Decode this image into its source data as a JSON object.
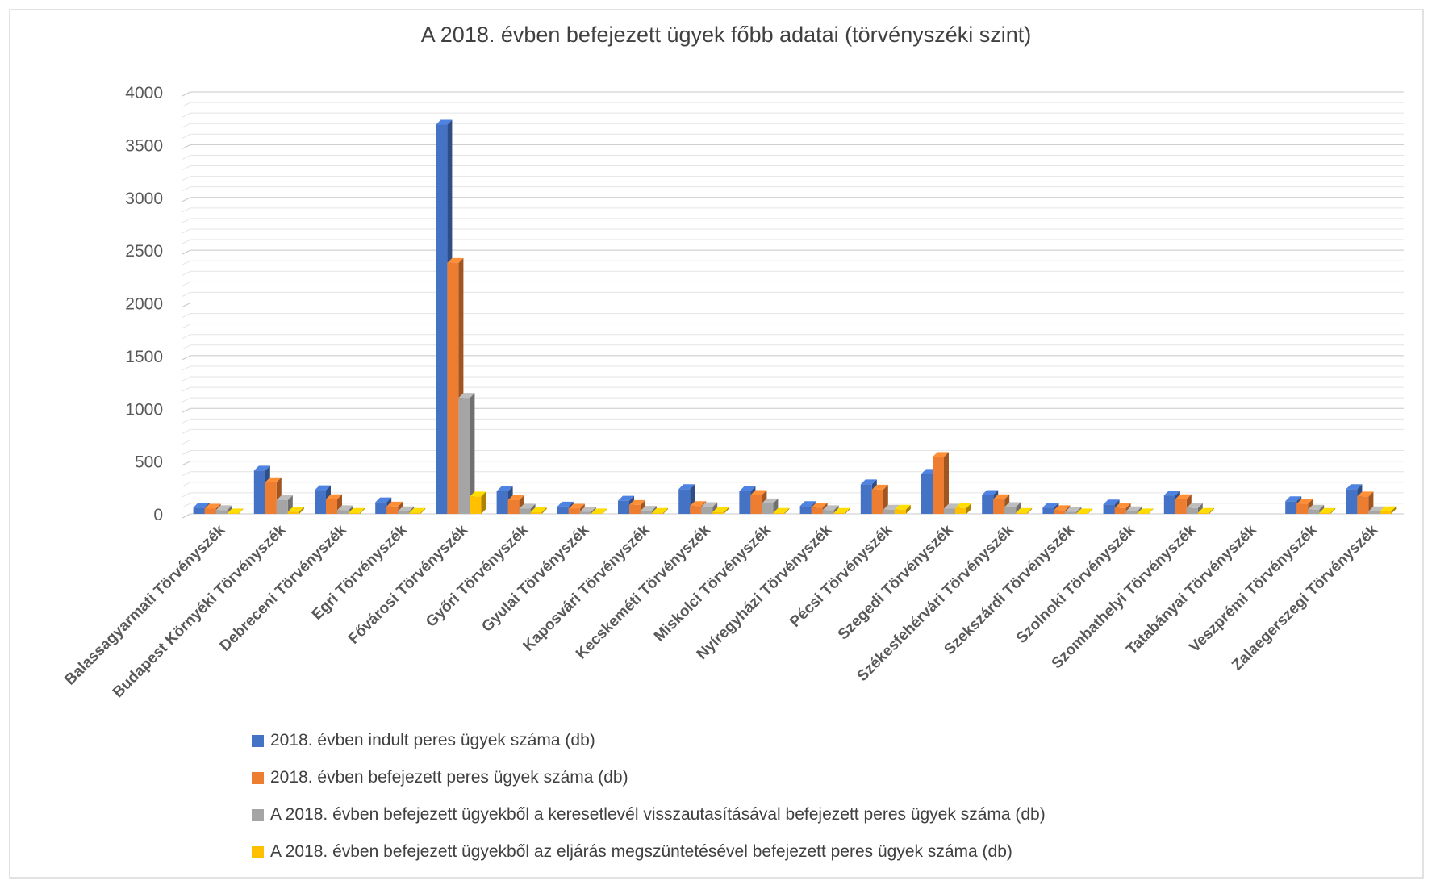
{
  "chart_data": {
    "type": "bar",
    "title": "A 2018. évben befejezett ügyek főbb adatai (törvényszéki szint)",
    "ylim": [
      0,
      4000
    ],
    "yticks": [
      0,
      500,
      1000,
      1500,
      2000,
      2500,
      3000,
      3500,
      4000
    ],
    "grid": true,
    "legend_position": "bottom",
    "categories": [
      "Balassagyarmati Törvényszék",
      "Budapest Környéki Törvényszék",
      "Debreceni Törvényszék",
      "Egri Törvényszék",
      "Fővárosi Törvényszék",
      "Győri Törvényszék",
      "Gyulai Törvényszék",
      "Kaposvári Törvényszék",
      "Kecskeméti Törvényszék",
      "Miskolci Törvényszék",
      "Nyíregyházi Törvényszék",
      "Pécsi Törvényszék",
      "Szegedi Törvényszék",
      "Székesfehérvári Törvényszék",
      "Szekszárdi Törvényszék",
      "Szolnoki Törvényszék",
      "Szombathelyi Törvényszék",
      "Tatabányai Törvényszék",
      "Veszprémi Törvényszék",
      "Zalaegerszegi Törvényszék"
    ],
    "series": [
      {
        "name": "2018. évben indult  peres ügyek száma (db)",
        "color": "#4472C4",
        "values": [
          60,
          410,
          225,
          110,
          3690,
          215,
          70,
          125,
          235,
          215,
          75,
          280,
          380,
          180,
          60,
          90,
          175,
          0,
          120,
          235
        ]
      },
      {
        "name": "2018. évben befejezett peres ügyek száma (db)",
        "color": "#ED7D31",
        "values": [
          50,
          300,
          140,
          70,
          2380,
          130,
          50,
          85,
          75,
          180,
          60,
          230,
          540,
          140,
          35,
          55,
          140,
          0,
          95,
          165
        ]
      },
      {
        "name": "A 2018. évben befejezett ügyekből a keresetlevél visszautasításával befejezett peres ügyek száma (db)",
        "color": "#A5A5A5",
        "values": [
          35,
          130,
          35,
          25,
          1100,
          50,
          20,
          30,
          65,
          100,
          35,
          40,
          50,
          65,
          20,
          25,
          55,
          0,
          40,
          25
        ]
      },
      {
        "name": "A 2018. évben befejezett ügyekből az eljárás megszüntetésével befejezett peres ügyek száma (db)",
        "color": "#FFC000",
        "values": [
          5,
          20,
          10,
          10,
          165,
          15,
          5,
          10,
          15,
          10,
          10,
          40,
          55,
          10,
          5,
          5,
          10,
          0,
          10,
          25
        ]
      }
    ]
  }
}
